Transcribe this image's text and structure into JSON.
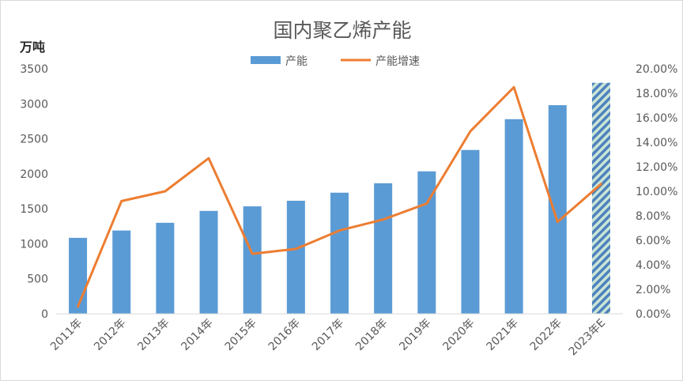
{
  "chart_data": {
    "type": "bar",
    "title": "国内聚乙烯产能",
    "ylabel": "万吨",
    "categories": [
      "2011年",
      "2012年",
      "2013年",
      "2014年",
      "2015年",
      "2016年",
      "2017年",
      "2018年",
      "2019年",
      "2020年",
      "2021年",
      "2022年",
      "2023年E"
    ],
    "ylim": [
      0,
      3500
    ],
    "y_ticks": [
      "0",
      "500",
      "1000",
      "1500",
      "2000",
      "2500",
      "3000",
      "3500"
    ],
    "y2lim": [
      0,
      0.2
    ],
    "y2_ticks": [
      "0.00%",
      "2.00%",
      "4.00%",
      "6.00%",
      "8.00%",
      "10.00%",
      "12.00%",
      "14.00%",
      "16.00%",
      "18.00%",
      "20.00%"
    ],
    "series": [
      {
        "name": "产能",
        "type": "bar",
        "axis": "left",
        "color": "#5b9bd5",
        "values": [
          1085,
          1190,
          1300,
          1470,
          1535,
          1615,
          1730,
          1865,
          2035,
          2340,
          2780,
          2980,
          3300
        ]
      },
      {
        "name": "产能增速",
        "type": "line",
        "axis": "right",
        "color": "#ed7d31",
        "values": [
          0.006,
          0.092,
          0.1,
          0.127,
          0.049,
          0.053,
          0.068,
          0.077,
          0.09,
          0.149,
          0.185,
          0.075,
          0.106
        ]
      }
    ],
    "estimate_bar_fill": "hatched",
    "estimate_colors": [
      "#4f81bd",
      "#c9e6d6"
    ],
    "legend_position": "top-center",
    "grid": false
  }
}
